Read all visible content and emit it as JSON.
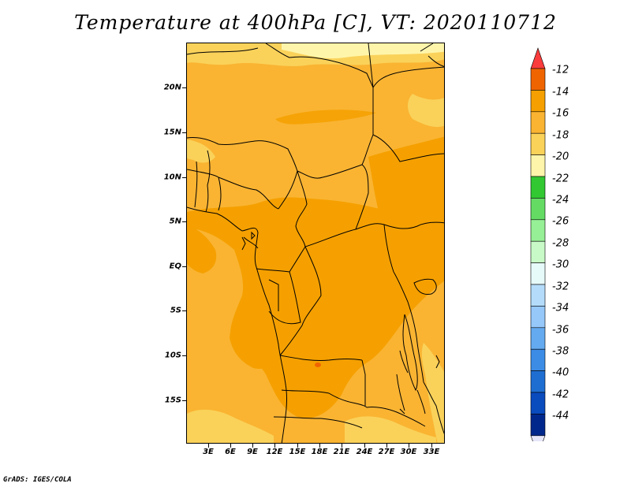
{
  "title": "Temperature at 400hPa [C], VT: 2020110712",
  "credit": "GrADS: IGES/COLA",
  "map": {
    "lat_labels": [
      "20N",
      "15N",
      "10N",
      "5N",
      "EQ",
      "5S",
      "10S",
      "15S"
    ],
    "lon_labels": [
      "3E",
      "6E",
      "9E",
      "12E",
      "15E",
      "18E",
      "21E",
      "24E",
      "27E",
      "30E",
      "33E"
    ],
    "lat_values": [
      20,
      15,
      10,
      5,
      0,
      -5,
      -10,
      -15
    ],
    "lon_values": [
      3,
      6,
      9,
      12,
      15,
      18,
      21,
      24,
      27,
      30,
      33
    ],
    "lat_range": [
      -19.8,
      24.8
    ],
    "lon_range": [
      0.2,
      35.0
    ]
  },
  "colorbar": {
    "labels": [
      "-12",
      "-14",
      "-16",
      "-18",
      "-20",
      "-22",
      "-24",
      "-26",
      "-28",
      "-30",
      "-32",
      "-34",
      "-36",
      "-38",
      "-40",
      "-42",
      "-44"
    ],
    "colors": [
      "#fa3c3c",
      "#f06400",
      "#f5a000",
      "#fab432",
      "#fad25a",
      "#fff5aa",
      "#32c832",
      "#64dc64",
      "#96f096",
      "#c8fac8",
      "#e6fafa",
      "#b4dcfa",
      "#96c8fa",
      "#64aaf0",
      "#3c8ce6",
      "#1e6ed2",
      "#0a4bbe",
      "#00288c",
      "#e6e6fa"
    ]
  },
  "field_colors": {
    "minus16_18": "#fab432",
    "minus14_16": "#f5a000",
    "minus18_20": "#fad25a",
    "minus20_22": "#fff5aa",
    "minus12_14": "#f06400"
  }
}
